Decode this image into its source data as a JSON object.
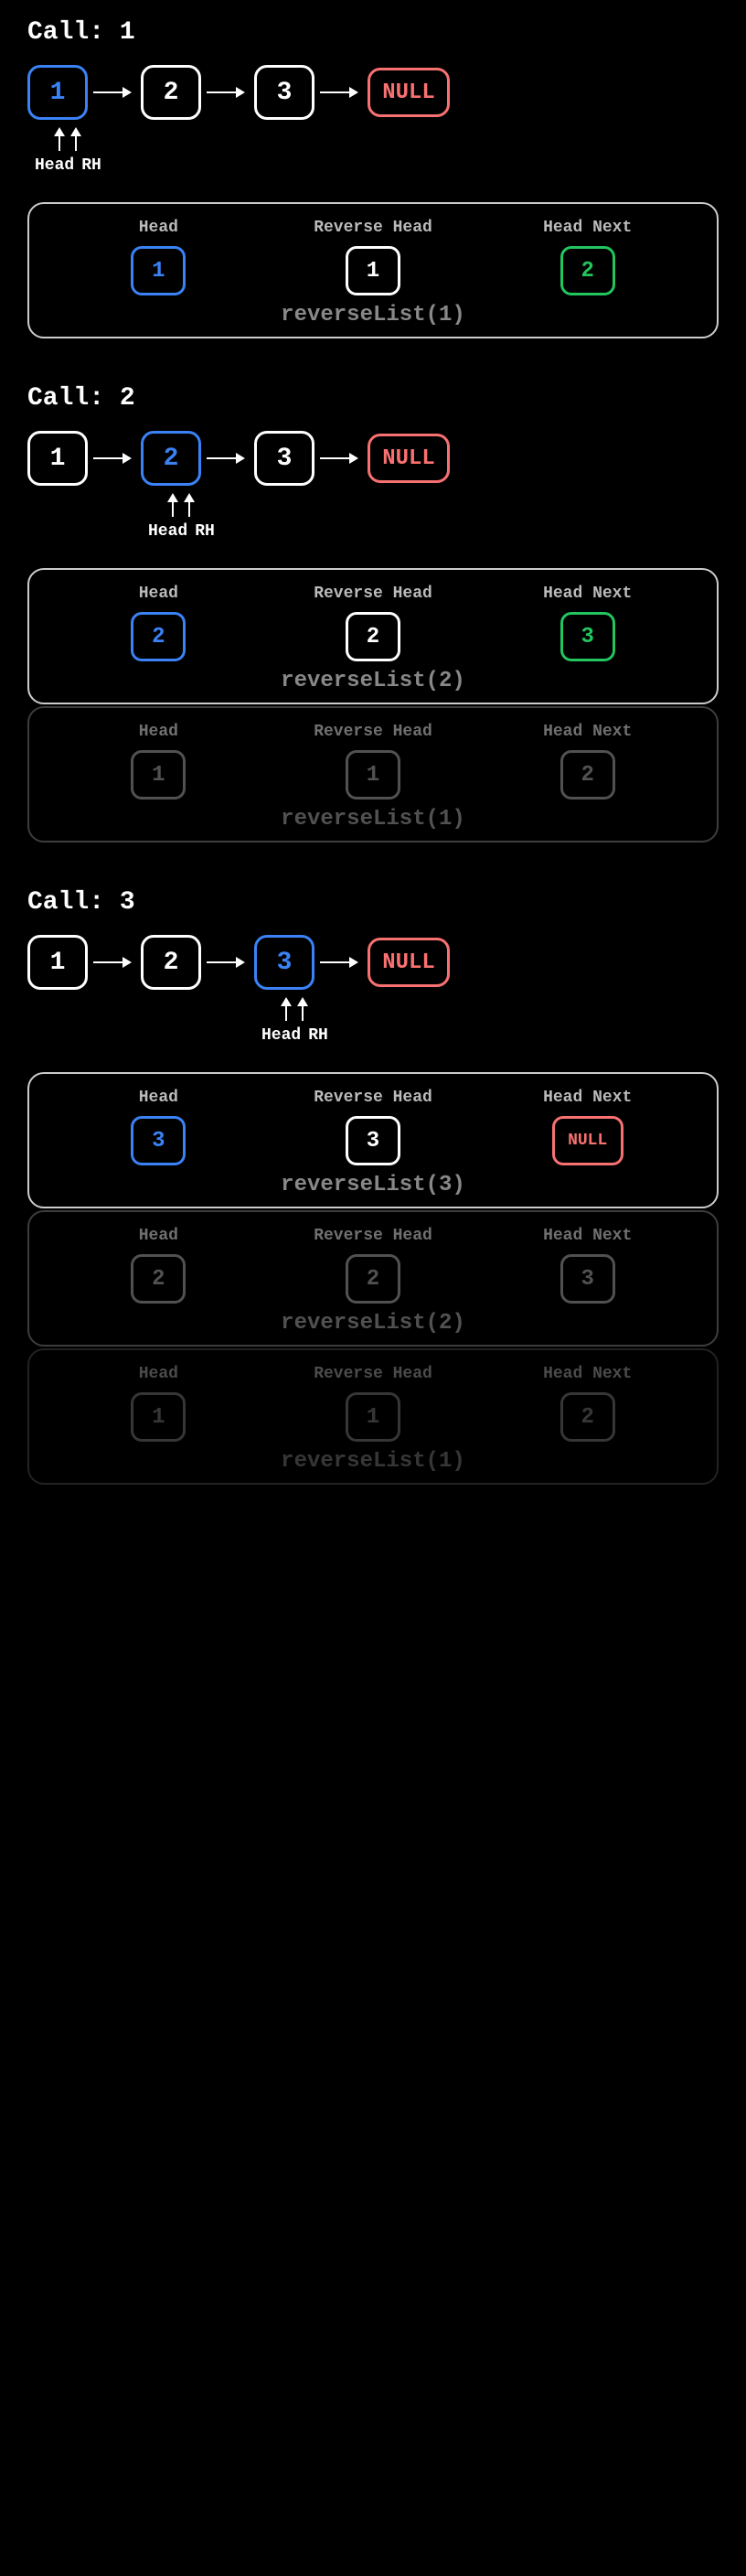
{
  "colors": {
    "blue": "#3b82f6",
    "green": "#22c55e",
    "red": "#f87171",
    "white": "#ffffff",
    "gray": "#888888",
    "background": "#000000"
  },
  "node_style": {
    "border_width": 3,
    "border_radius": 14,
    "font_size": 28,
    "font_weight": "bold"
  },
  "calls": [
    {
      "title": "Call: 1",
      "list": [
        {
          "value": "1",
          "color": "blue"
        },
        {
          "value": "2",
          "color": "white"
        },
        {
          "value": "3",
          "color": "white"
        },
        {
          "value": "NULL",
          "color": "red",
          "is_null": true
        }
      ],
      "pointer_offset_node_index": 0,
      "pointer_labels": [
        "Head",
        "RH"
      ],
      "stack": [
        {
          "labels": [
            "Head",
            "Reverse Head",
            "Head Next"
          ],
          "nodes": [
            {
              "value": "1",
              "color": "blue"
            },
            {
              "value": "1",
              "color": "white"
            },
            {
              "value": "2",
              "color": "green"
            }
          ],
          "func": "reverseList(1)",
          "dim": "none"
        }
      ]
    },
    {
      "title": "Call: 2",
      "list": [
        {
          "value": "1",
          "color": "white"
        },
        {
          "value": "2",
          "color": "blue"
        },
        {
          "value": "3",
          "color": "white"
        },
        {
          "value": "NULL",
          "color": "red",
          "is_null": true
        }
      ],
      "pointer_offset_node_index": 1,
      "pointer_labels": [
        "Head",
        "RH"
      ],
      "stack": [
        {
          "labels": [
            "Head",
            "Reverse Head",
            "Head Next"
          ],
          "nodes": [
            {
              "value": "2",
              "color": "blue"
            },
            {
              "value": "2",
              "color": "white"
            },
            {
              "value": "3",
              "color": "green"
            }
          ],
          "func": "reverseList(2)",
          "dim": "none"
        },
        {
          "labels": [
            "Head",
            "Reverse Head",
            "Head Next"
          ],
          "nodes": [
            {
              "value": "1",
              "color": "gray"
            },
            {
              "value": "1",
              "color": "gray"
            },
            {
              "value": "2",
              "color": "gray"
            }
          ],
          "func": "reverseList(1)",
          "dim": "dim"
        }
      ]
    },
    {
      "title": "Call: 3",
      "list": [
        {
          "value": "1",
          "color": "white"
        },
        {
          "value": "2",
          "color": "white"
        },
        {
          "value": "3",
          "color": "blue"
        },
        {
          "value": "NULL",
          "color": "red",
          "is_null": true
        }
      ],
      "pointer_offset_node_index": 2,
      "pointer_labels": [
        "Head",
        "RH"
      ],
      "stack": [
        {
          "labels": [
            "Head",
            "Reverse Head",
            "Head Next"
          ],
          "nodes": [
            {
              "value": "3",
              "color": "blue"
            },
            {
              "value": "3",
              "color": "white"
            },
            {
              "value": "NULL",
              "color": "red",
              "is_null": true
            }
          ],
          "func": "reverseList(3)",
          "dim": "none"
        },
        {
          "labels": [
            "Head",
            "Reverse Head",
            "Head Next"
          ],
          "nodes": [
            {
              "value": "2",
              "color": "gray"
            },
            {
              "value": "2",
              "color": "gray"
            },
            {
              "value": "3",
              "color": "gray"
            }
          ],
          "func": "reverseList(2)",
          "dim": "dim"
        },
        {
          "labels": [
            "Head",
            "Reverse Head",
            "Head Next"
          ],
          "nodes": [
            {
              "value": "1",
              "color": "gray"
            },
            {
              "value": "1",
              "color": "gray"
            },
            {
              "value": "2",
              "color": "gray"
            }
          ],
          "func": "reverseList(1)",
          "dim": "dimmer"
        }
      ]
    }
  ]
}
